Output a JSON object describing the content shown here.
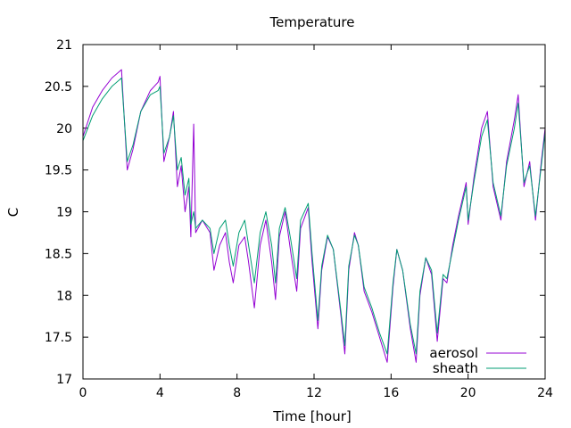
{
  "chart_data": {
    "type": "line",
    "title": "Temperature",
    "xlabel": "Time [hour]",
    "ylabel": "C",
    "xlim": [
      0,
      24
    ],
    "ylim": [
      17,
      21
    ],
    "grid": false,
    "legend_position": "bottom-right",
    "xticks": [
      "0",
      "4",
      "8",
      "12",
      "16",
      "20",
      "24"
    ],
    "yticks": [
      "17",
      "17.5",
      "18",
      "18.5",
      "19",
      "19.5",
      "20",
      "20.5",
      "21"
    ],
    "series": [
      {
        "name": "aerosol",
        "color": "#9400d3",
        "points": [
          [
            0,
            19.9
          ],
          [
            0.5,
            20.25
          ],
          [
            1.0,
            20.45
          ],
          [
            1.5,
            20.6
          ],
          [
            2.0,
            20.7
          ],
          [
            2.3,
            19.5
          ],
          [
            2.6,
            19.75
          ],
          [
            3.0,
            20.2
          ],
          [
            3.5,
            20.45
          ],
          [
            3.9,
            20.55
          ],
          [
            4.0,
            20.62
          ],
          [
            4.2,
            19.6
          ],
          [
            4.5,
            19.9
          ],
          [
            4.7,
            20.2
          ],
          [
            4.9,
            19.3
          ],
          [
            5.1,
            19.55
          ],
          [
            5.3,
            19.0
          ],
          [
            5.5,
            19.3
          ],
          [
            5.6,
            18.7
          ],
          [
            5.75,
            20.05
          ],
          [
            5.85,
            18.75
          ],
          [
            6.2,
            18.9
          ],
          [
            6.6,
            18.75
          ],
          [
            6.8,
            18.3
          ],
          [
            7.1,
            18.6
          ],
          [
            7.4,
            18.75
          ],
          [
            7.6,
            18.4
          ],
          [
            7.8,
            18.15
          ],
          [
            8.1,
            18.6
          ],
          [
            8.4,
            18.7
          ],
          [
            8.6,
            18.4
          ],
          [
            8.9,
            17.85
          ],
          [
            9.2,
            18.6
          ],
          [
            9.5,
            18.9
          ],
          [
            9.8,
            18.4
          ],
          [
            10.0,
            17.95
          ],
          [
            10.2,
            18.7
          ],
          [
            10.5,
            19.0
          ],
          [
            10.8,
            18.5
          ],
          [
            11.1,
            18.05
          ],
          [
            11.3,
            18.8
          ],
          [
            11.7,
            19.05
          ],
          [
            11.9,
            18.4
          ],
          [
            12.2,
            17.6
          ],
          [
            12.4,
            18.3
          ],
          [
            12.7,
            18.7
          ],
          [
            13.0,
            18.55
          ],
          [
            13.4,
            17.75
          ],
          [
            13.6,
            17.3
          ],
          [
            13.8,
            18.3
          ],
          [
            14.1,
            18.75
          ],
          [
            14.3,
            18.6
          ],
          [
            14.6,
            18.05
          ],
          [
            15.0,
            17.8
          ],
          [
            15.4,
            17.5
          ],
          [
            15.8,
            17.2
          ],
          [
            16.1,
            18.1
          ],
          [
            16.3,
            18.55
          ],
          [
            16.6,
            18.3
          ],
          [
            17.0,
            17.6
          ],
          [
            17.3,
            17.2
          ],
          [
            17.5,
            18.0
          ],
          [
            17.8,
            18.45
          ],
          [
            18.1,
            18.25
          ],
          [
            18.4,
            17.45
          ],
          [
            18.7,
            18.2
          ],
          [
            18.9,
            18.15
          ],
          [
            19.2,
            18.6
          ],
          [
            19.5,
            18.95
          ],
          [
            19.9,
            19.35
          ],
          [
            20.0,
            18.85
          ],
          [
            20.3,
            19.4
          ],
          [
            20.7,
            20.0
          ],
          [
            21.0,
            20.2
          ],
          [
            21.3,
            19.3
          ],
          [
            21.7,
            18.9
          ],
          [
            22.0,
            19.6
          ],
          [
            22.4,
            20.1
          ],
          [
            22.6,
            20.4
          ],
          [
            22.9,
            19.3
          ],
          [
            23.2,
            19.6
          ],
          [
            23.5,
            18.9
          ],
          [
            23.8,
            19.6
          ],
          [
            24.0,
            20.0
          ]
        ]
      },
      {
        "name": "sheath",
        "color": "#009e73",
        "points": [
          [
            0,
            19.85
          ],
          [
            0.5,
            20.15
          ],
          [
            1.0,
            20.35
          ],
          [
            1.5,
            20.5
          ],
          [
            2.0,
            20.6
          ],
          [
            2.3,
            19.6
          ],
          [
            2.6,
            19.8
          ],
          [
            3.0,
            20.2
          ],
          [
            3.5,
            20.4
          ],
          [
            3.9,
            20.45
          ],
          [
            4.0,
            20.5
          ],
          [
            4.2,
            19.7
          ],
          [
            4.5,
            19.9
          ],
          [
            4.7,
            20.15
          ],
          [
            4.9,
            19.5
          ],
          [
            5.1,
            19.65
          ],
          [
            5.3,
            19.2
          ],
          [
            5.5,
            19.4
          ],
          [
            5.6,
            18.85
          ],
          [
            5.75,
            19.0
          ],
          [
            5.85,
            18.8
          ],
          [
            6.2,
            18.9
          ],
          [
            6.6,
            18.8
          ],
          [
            6.8,
            18.5
          ],
          [
            7.1,
            18.8
          ],
          [
            7.4,
            18.9
          ],
          [
            7.6,
            18.6
          ],
          [
            7.8,
            18.35
          ],
          [
            8.1,
            18.75
          ],
          [
            8.4,
            18.9
          ],
          [
            8.6,
            18.6
          ],
          [
            8.9,
            18.15
          ],
          [
            9.2,
            18.75
          ],
          [
            9.5,
            19.0
          ],
          [
            9.8,
            18.6
          ],
          [
            10.0,
            18.15
          ],
          [
            10.2,
            18.8
          ],
          [
            10.5,
            19.05
          ],
          [
            10.8,
            18.65
          ],
          [
            11.1,
            18.2
          ],
          [
            11.3,
            18.9
          ],
          [
            11.7,
            19.1
          ],
          [
            11.9,
            18.5
          ],
          [
            12.2,
            17.7
          ],
          [
            12.4,
            18.35
          ],
          [
            12.7,
            18.72
          ],
          [
            13.0,
            18.55
          ],
          [
            13.4,
            17.8
          ],
          [
            13.6,
            17.4
          ],
          [
            13.8,
            18.35
          ],
          [
            14.1,
            18.72
          ],
          [
            14.3,
            18.6
          ],
          [
            14.6,
            18.1
          ],
          [
            15.0,
            17.85
          ],
          [
            15.4,
            17.55
          ],
          [
            15.8,
            17.3
          ],
          [
            16.1,
            18.15
          ],
          [
            16.3,
            18.55
          ],
          [
            16.6,
            18.3
          ],
          [
            17.0,
            17.65
          ],
          [
            17.3,
            17.3
          ],
          [
            17.5,
            18.05
          ],
          [
            17.8,
            18.45
          ],
          [
            18.1,
            18.3
          ],
          [
            18.4,
            17.55
          ],
          [
            18.7,
            18.25
          ],
          [
            18.9,
            18.2
          ],
          [
            19.2,
            18.55
          ],
          [
            19.5,
            18.9
          ],
          [
            19.9,
            19.3
          ],
          [
            20.0,
            18.9
          ],
          [
            20.3,
            19.35
          ],
          [
            20.7,
            19.9
          ],
          [
            21.0,
            20.1
          ],
          [
            21.3,
            19.35
          ],
          [
            21.7,
            18.95
          ],
          [
            22.0,
            19.55
          ],
          [
            22.4,
            20.0
          ],
          [
            22.6,
            20.3
          ],
          [
            22.9,
            19.35
          ],
          [
            23.2,
            19.55
          ],
          [
            23.5,
            18.95
          ],
          [
            23.8,
            19.55
          ],
          [
            24.0,
            19.95
          ]
        ]
      }
    ]
  }
}
